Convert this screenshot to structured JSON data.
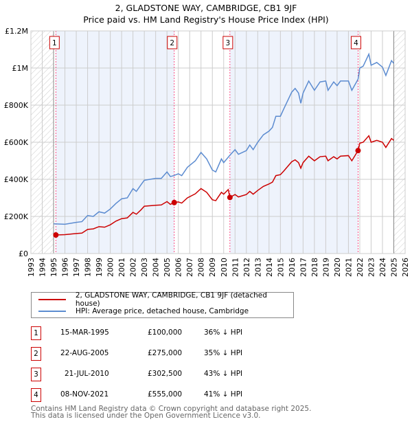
{
  "chart_data": {
    "type": "line",
    "title": "2, GLADSTONE WAY, CAMBRIDGE, CB1 9JF",
    "subtitle": "Price paid vs. HM Land Registry's House Price Index (HPI)",
    "xlim": [
      1993,
      2026
    ],
    "ylim": [
      0,
      1200000
    ],
    "grid": true,
    "y_ticks": [
      {
        "v": 0,
        "label": "£0"
      },
      {
        "v": 200000,
        "label": "£200K"
      },
      {
        "v": 400000,
        "label": "£400K"
      },
      {
        "v": 600000,
        "label": "£600K"
      },
      {
        "v": 800000,
        "label": "£800K"
      },
      {
        "v": 1000000,
        "label": "£1M"
      },
      {
        "v": 1200000,
        "label": "£1.2M"
      }
    ],
    "x_ticks": [
      "1993",
      "1994",
      "1995",
      "1996",
      "1997",
      "1998",
      "1999",
      "2000",
      "2001",
      "2002",
      "2003",
      "2004",
      "2005",
      "2006",
      "2007",
      "2008",
      "2009",
      "2010",
      "2011",
      "2012",
      "2013",
      "2014",
      "2015",
      "2016",
      "2017",
      "2018",
      "2019",
      "2020",
      "2021",
      "2022",
      "2023",
      "2024",
      "2025",
      "2026"
    ],
    "data_range": [
      1995,
      2025
    ],
    "series": [
      {
        "name": "2, GLADSTONE WAY, CAMBRIDGE, CB1 9JF (detached house)",
        "color": "#cc0000",
        "x": [
          1995.2,
          1996,
          1997,
          1997.5,
          1998,
          1998.5,
          1999,
          1999.5,
          2000,
          2000.5,
          2001,
          2001.5,
          2002,
          2002.3,
          2002.7,
          2003,
          2004,
          2004.5,
          2005,
          2005.3,
          2005.6,
          2006,
          2006.3,
          2006.8,
          2007.5,
          2008,
          2008.5,
          2009,
          2009.3,
          2009.8,
          2010,
          2010.4,
          2010.55,
          2011,
          2011.3,
          2012,
          2012.3,
          2012.6,
          2013,
          2013.5,
          2014,
          2014.3,
          2014.6,
          2015,
          2015.3,
          2016,
          2016.3,
          2016.6,
          2016.8,
          2017,
          2017.5,
          2018,
          2018.5,
          2019,
          2019.2,
          2019.7,
          2020,
          2020.3,
          2021,
          2021.3,
          2021.85,
          2022,
          2022.3,
          2022.8,
          2023,
          2023.5,
          2024,
          2024.3,
          2024.8,
          2025
        ],
        "y": [
          100,
          102,
          108,
          110,
          130,
          133,
          145,
          142,
          155,
          175,
          188,
          192,
          222,
          212,
          235,
          255,
          260,
          262,
          280,
          265,
          275,
          278,
          272,
          300,
          322,
          350,
          330,
          290,
          285,
          330,
          320,
          345,
          302.5,
          318,
          305,
          318,
          335,
          320,
          340,
          362,
          375,
          385,
          420,
          425,
          445,
          495,
          505,
          490,
          460,
          490,
          525,
          500,
          522,
          525,
          500,
          522,
          510,
          525,
          528,
          500,
          555,
          595,
          600,
          635,
          600,
          610,
          600,
          572,
          620,
          610
        ]
      },
      {
        "name": "HPI: Average price, detached house, Cambridge",
        "color": "#5b8bd0",
        "x": [
          1995,
          1996,
          1997,
          1997.5,
          1998,
          1998.5,
          1999,
          1999.5,
          2000,
          2000.5,
          2001,
          2001.5,
          2002,
          2002.3,
          2002.7,
          2003,
          2004,
          2004.5,
          2005,
          2005.3,
          2005.6,
          2006,
          2006.3,
          2006.8,
          2007.5,
          2008,
          2008.5,
          2009,
          2009.3,
          2009.8,
          2010,
          2010.55,
          2011,
          2011.3,
          2012,
          2012.3,
          2012.6,
          2013,
          2013.5,
          2014,
          2014.3,
          2014.6,
          2015,
          2015.3,
          2016,
          2016.3,
          2016.6,
          2016.8,
          2017,
          2017.5,
          2018,
          2018.5,
          2019,
          2019.2,
          2019.7,
          2020,
          2020.3,
          2021,
          2021.3,
          2021.85,
          2022,
          2022.3,
          2022.8,
          2023,
          2023.5,
          2024,
          2024.3,
          2024.8,
          2025
        ],
        "y": [
          160,
          158,
          168,
          172,
          205,
          200,
          225,
          218,
          240,
          270,
          295,
          300,
          350,
          335,
          370,
          395,
          405,
          405,
          440,
          415,
          420,
          430,
          420,
          465,
          500,
          545,
          510,
          450,
          440,
          510,
          490,
          530,
          560,
          535,
          555,
          585,
          560,
          600,
          640,
          660,
          680,
          740,
          740,
          780,
          870,
          890,
          865,
          810,
          865,
          930,
          880,
          925,
          930,
          880,
          925,
          905,
          930,
          930,
          880,
          940,
          1000,
          1010,
          1075,
          1015,
          1030,
          1005,
          960,
          1040,
          1025
        ]
      }
    ],
    "y_unit": "thousands GBP",
    "sales": [
      {
        "label": "1",
        "x": 2005.0,
        "date": "15-MAR-1995",
        "price": "£100,000",
        "hpi": "36% ↓ HPI",
        "t": 1995.2,
        "v": 100
      },
      {
        "label": "2",
        "date": "22-AUG-2005",
        "price": "£275,000",
        "hpi": "35% ↓ HPI",
        "t": 2005.64,
        "v": 275
      },
      {
        "label": "3",
        "date": "21-JUL-2010",
        "price": "£302,500",
        "hpi": "43% ↓ HPI",
        "t": 2010.55,
        "v": 302.5
      },
      {
        "label": "4",
        "date": "08-NOV-2021",
        "price": "£555,000",
        "hpi": "41% ↓ HPI",
        "t": 2021.85,
        "v": 555
      }
    ]
  },
  "legend": {
    "property": "2, GLADSTONE WAY, CAMBRIDGE, CB1 9JF (detached house)",
    "hpi": "HPI: Average price, detached house, Cambridge"
  },
  "footer": {
    "line1": "Contains HM Land Registry data © Crown copyright and database right 2025.",
    "line2": "This data is licensed under the Open Government Licence v3.0."
  }
}
